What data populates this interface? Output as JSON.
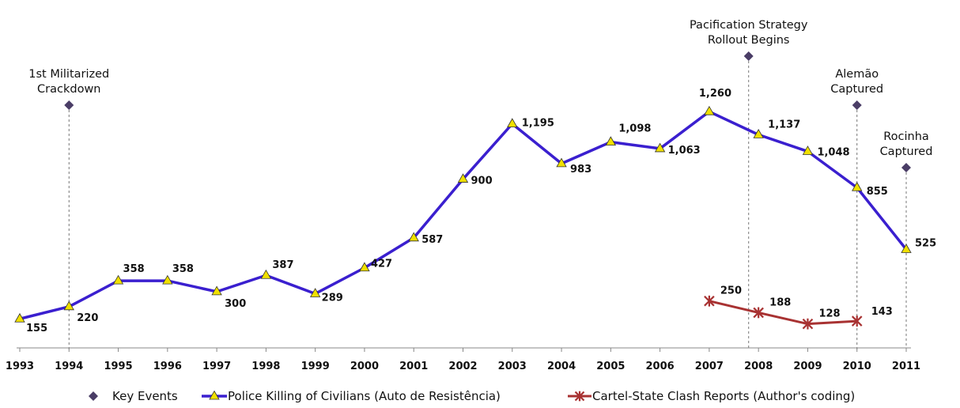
{
  "chart_data": {
    "type": "line",
    "x": [
      "1993",
      "1994",
      "1995",
      "1996",
      "1997",
      "1998",
      "1999",
      "2000",
      "2001",
      "2002",
      "2003",
      "2004",
      "2005",
      "2006",
      "2007",
      "2008",
      "2009",
      "2010",
      "2011"
    ],
    "ylim": [
      0,
      1400
    ],
    "grid": false,
    "legend_position": "bottom",
    "series": [
      {
        "name": "Police Killing of Civilians (Auto de Resistência)",
        "color": "#3a1fcf",
        "marker_color": "#f0e000",
        "marker": "triangle",
        "x": [
          "1993",
          "1994",
          "1995",
          "1996",
          "1997",
          "1998",
          "1999",
          "2000",
          "2001",
          "2002",
          "2003",
          "2004",
          "2005",
          "2006",
          "2007",
          "2008",
          "2009",
          "2010",
          "2011"
        ],
        "values": [
          155,
          220,
          358,
          358,
          300,
          387,
          289,
          427,
          587,
          900,
          1195,
          983,
          1098,
          1063,
          1260,
          1137,
          1048,
          855,
          525
        ],
        "labels": [
          "155",
          "220",
          "358",
          "358",
          "300",
          "387",
          "289",
          "427",
          "587",
          "900",
          "1,195",
          "983",
          "1,098",
          "1,063",
          "1,260",
          "1,137",
          "1,048",
          "855",
          "525"
        ]
      },
      {
        "name": "Cartel-State Clash Reports (Author's coding)",
        "color": "#a83232",
        "marker": "star",
        "x": [
          "2007",
          "2008",
          "2009",
          "2010"
        ],
        "values": [
          250,
          188,
          128,
          143
        ],
        "labels": [
          "250",
          "188",
          "128",
          "143"
        ]
      }
    ],
    "key_events": {
      "name": "Key Events",
      "color": "#4a3d66",
      "events": [
        {
          "year": 1994,
          "label_lines": [
            "1st Militarized",
            "Crackdown"
          ]
        },
        {
          "year": 2007.8,
          "label_lines": [
            "Pacification Strategy",
            "Rollout Begins"
          ]
        },
        {
          "year": 2010,
          "label_lines": [
            "Alemão",
            "Captured"
          ]
        },
        {
          "year": 2011,
          "label_lines": [
            "Rocinha",
            "Captured"
          ]
        }
      ]
    }
  }
}
